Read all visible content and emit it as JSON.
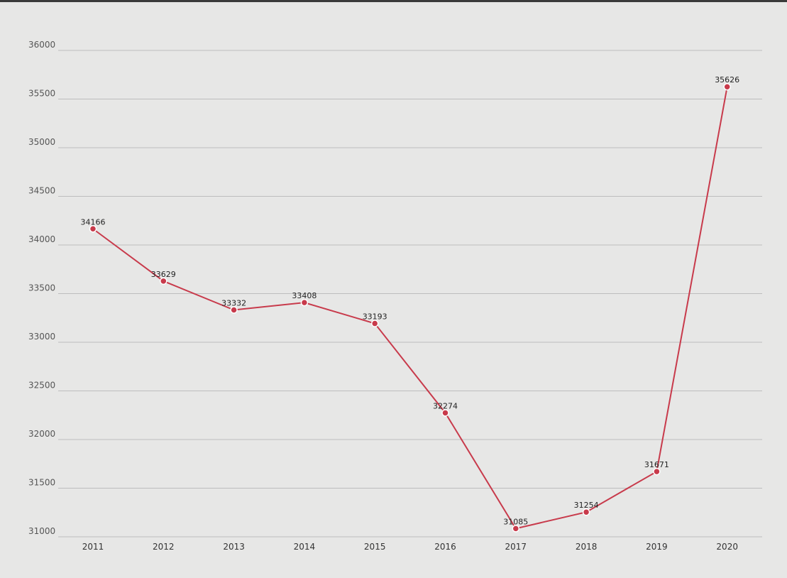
{
  "chart_data": {
    "type": "line",
    "title": "",
    "xlabel": "",
    "ylabel": "",
    "categories": [
      "2011",
      "2012",
      "2013",
      "2014",
      "2015",
      "2016",
      "2017",
      "2018",
      "2019",
      "2020"
    ],
    "series": [
      {
        "values": [
          34166,
          33629,
          33332,
          33408,
          33193,
          32274,
          31085,
          31254,
          31671,
          35626
        ]
      }
    ],
    "ylim": [
      31000,
      36000
    ],
    "yticks": [
      31000,
      31500,
      32000,
      32500,
      33000,
      33500,
      34000,
      34500,
      35000,
      35500,
      36000
    ],
    "grid": true,
    "legend": "none",
    "colors": {
      "line": "#c83a4b",
      "grid": "#bdbdbd",
      "background": "#e7e7e6"
    }
  }
}
